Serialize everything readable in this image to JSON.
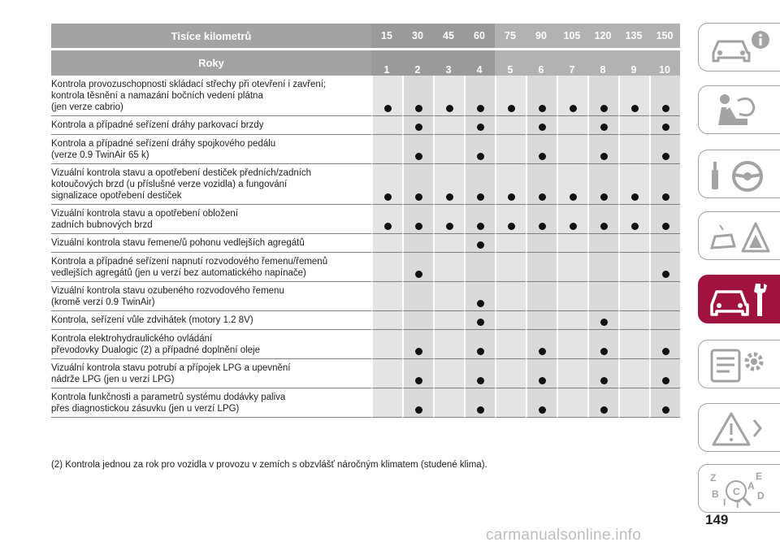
{
  "table": {
    "header": {
      "km_label": "Tisíce kilometrů",
      "years_label": "Roky",
      "km": [
        "15",
        "30",
        "45",
        "60",
        "75",
        "90",
        "105",
        "120",
        "135",
        "150"
      ],
      "years": [
        "1",
        "2",
        "3",
        "4",
        "5",
        "6",
        "7",
        "8",
        "9",
        "10"
      ]
    },
    "rows": [
      {
        "text": "Kontrola provozuschopnosti skládací střechy při otevření i zavření;\nkontrola těsnění a namazání bočních vedení plátna\n(jen verze cabrio)",
        "marks": [
          1,
          1,
          1,
          1,
          1,
          1,
          1,
          1,
          1,
          1
        ]
      },
      {
        "text": "Kontrola a případné seřízení dráhy parkovací brzdy",
        "marks": [
          0,
          1,
          0,
          1,
          0,
          1,
          0,
          1,
          0,
          1
        ]
      },
      {
        "text": "Kontrola a případné seřízení dráhy spojkového pedálu\n(verze 0.9 TwinAir 65 k)",
        "marks": [
          0,
          1,
          0,
          1,
          0,
          1,
          0,
          1,
          0,
          1
        ]
      },
      {
        "text": "Vizuální kontrola stavu a opotřebení destiček předních/zadních\nkotoučových brzd (u příslušné verze vozidla) a fungování\nsignalizace opotřebení destiček",
        "marks": [
          1,
          1,
          1,
          1,
          1,
          1,
          1,
          1,
          1,
          1
        ]
      },
      {
        "text": "Vizuální kontrola stavu a opotřebení obložení\nzadních bubnových brzd",
        "marks": [
          1,
          1,
          1,
          1,
          1,
          1,
          1,
          1,
          1,
          1
        ]
      },
      {
        "text": "Vizuální kontrola stavu řemene/ů pohonu vedlejších agregátů",
        "marks": [
          0,
          0,
          0,
          1,
          0,
          0,
          0,
          0,
          0,
          0
        ]
      },
      {
        "text": "Kontrola a případné seřízení napnutí rozvodového řemenu/řemenů\nvedlejších agregátů (jen u verzí bez automatického napínače)",
        "marks": [
          0,
          1,
          0,
          0,
          0,
          0,
          0,
          0,
          0,
          1
        ]
      },
      {
        "text": "Vizuální kontrola stavu ozubeného rozvodového řemenu\n(kromě verzí 0.9 TwinAir)",
        "marks": [
          0,
          0,
          0,
          1,
          0,
          0,
          0,
          0,
          0,
          0
        ]
      },
      {
        "text": "Kontrola, seřízení vůle zdvihátek (motory 1.2 8V)",
        "marks": [
          0,
          0,
          0,
          1,
          0,
          0,
          0,
          1,
          0,
          0
        ]
      },
      {
        "text": "Kontrola elektrohydraulického ovládání\npřevodovky Dualogic (2) a případné doplnění oleje",
        "marks": [
          0,
          1,
          0,
          1,
          0,
          1,
          0,
          1,
          0,
          1
        ]
      },
      {
        "text": "Vizuální kontrola stavu potrubí a přípojek LPG a upevnění\nnádrže LPG (jen u verzí LPG)",
        "marks": [
          0,
          1,
          0,
          1,
          0,
          1,
          0,
          1,
          0,
          1
        ]
      },
      {
        "text": "Kontrola funkčnosti a parametrů systému dodávky paliva\npřes diagnostickou zásuvku (jen u verzí LPG)",
        "marks": [
          0,
          1,
          0,
          1,
          0,
          1,
          0,
          1,
          0,
          1
        ]
      }
    ]
  },
  "footnote": "(2) Kontrola jednou za rok pro vozidla v provozu v zemích s obzvlášť náročným klimatem (studené klima).",
  "page_number": "149",
  "watermark": "carmanualsonline.info",
  "sidebar": {
    "tabs": [
      {
        "icon": "car-info-icon",
        "active": false
      },
      {
        "icon": "airbag-icon",
        "active": false
      },
      {
        "icon": "steering-key-icon",
        "active": false
      },
      {
        "icon": "breakdown-warning-icon",
        "active": false
      },
      {
        "icon": "car-service-icon",
        "active": true
      },
      {
        "icon": "specs-gear-icon",
        "active": false
      },
      {
        "icon": "multimedia-warning-icon",
        "active": false
      },
      {
        "icon": "alphabetical-index-icon",
        "active": false
      }
    ],
    "index_letters": [
      "Z",
      "E",
      "B",
      "D",
      "C",
      "I",
      "T",
      "A"
    ]
  },
  "colors": {
    "accent": "#a0133f",
    "header_gray": "#a3a3a3",
    "column_shade": "#dadada"
  }
}
